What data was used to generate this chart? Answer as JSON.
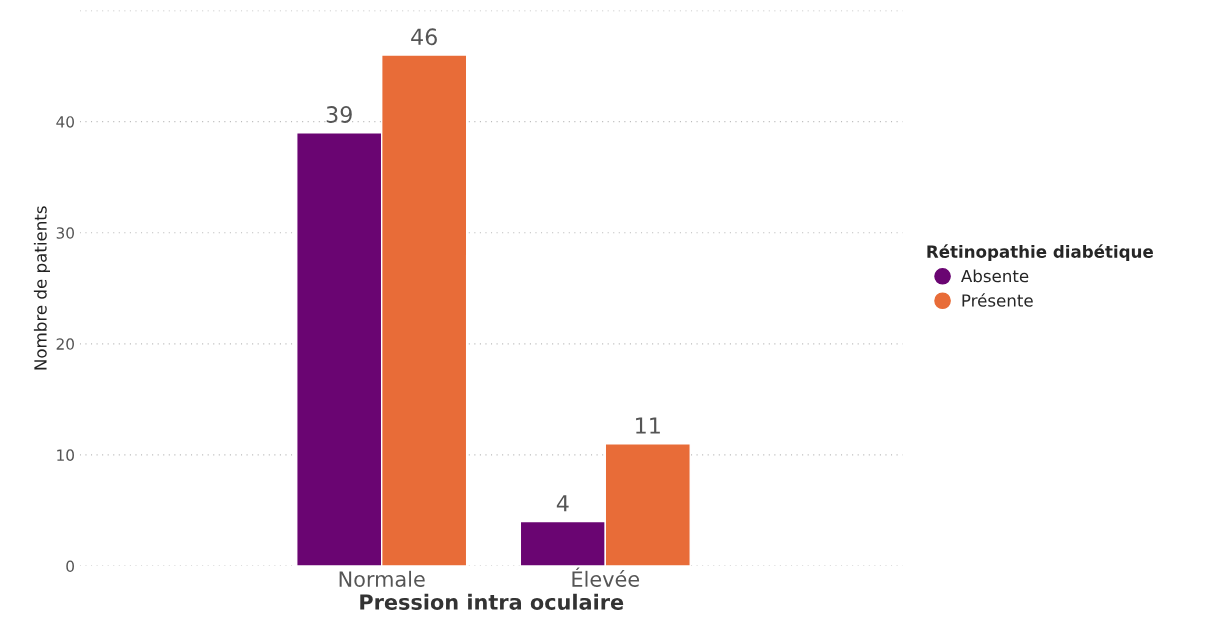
{
  "chart_data": {
    "type": "bar",
    "xlabel": "Pression intra oculaire",
    "ylabel": "Nombre de patients",
    "legend_title": "Rétinopathie diabétique",
    "categories": [
      "Normale",
      "Élevée"
    ],
    "series": [
      {
        "name": "Absente",
        "color": "#6a0572",
        "values": [
          39,
          4
        ]
      },
      {
        "name": "Présente",
        "color": "#e86c38",
        "values": [
          46,
          11
        ]
      }
    ],
    "ylim": [
      0,
      50
    ],
    "yticks": [
      0,
      10,
      20,
      30,
      40,
      {
        "value": 50,
        "label": null
      }
    ],
    "grid": "y",
    "legend": "right",
    "data_labels": true,
    "marker": "circle"
  }
}
